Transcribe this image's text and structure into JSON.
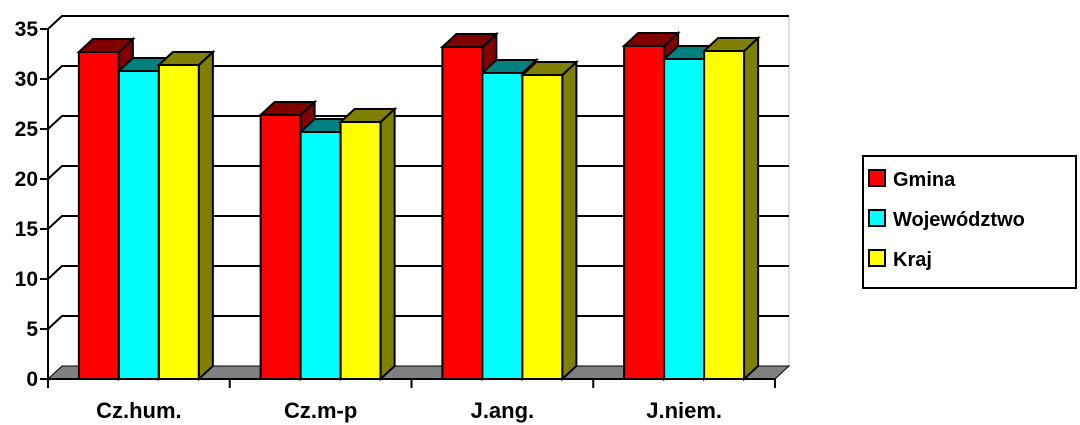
{
  "chart_data": {
    "type": "bar",
    "title": "",
    "xlabel": "",
    "ylabel": "",
    "categories": [
      "Cz.hum.",
      "Cz.m-p",
      "J.ang.",
      "J.niem."
    ],
    "series": [
      {
        "name": "Gmina",
        "values": [
          32.7,
          26.4,
          33.2,
          33.3
        ],
        "color": "#ff0000",
        "side_color": "#800000"
      },
      {
        "name": "Województwo",
        "values": [
          30.8,
          24.7,
          30.6,
          32.0
        ],
        "color": "#00ffff",
        "side_color": "#008080"
      },
      {
        "name": "Kraj",
        "values": [
          31.4,
          25.7,
          30.4,
          32.8
        ],
        "color": "#ffff00",
        "side_color": "#808000"
      }
    ],
    "ylim": [
      0,
      35
    ],
    "yticks": [
      "0",
      "5",
      "10",
      "15",
      "20",
      "25",
      "30",
      "35"
    ],
    "grid": true,
    "legend": "right",
    "floor_color": "#808080"
  }
}
